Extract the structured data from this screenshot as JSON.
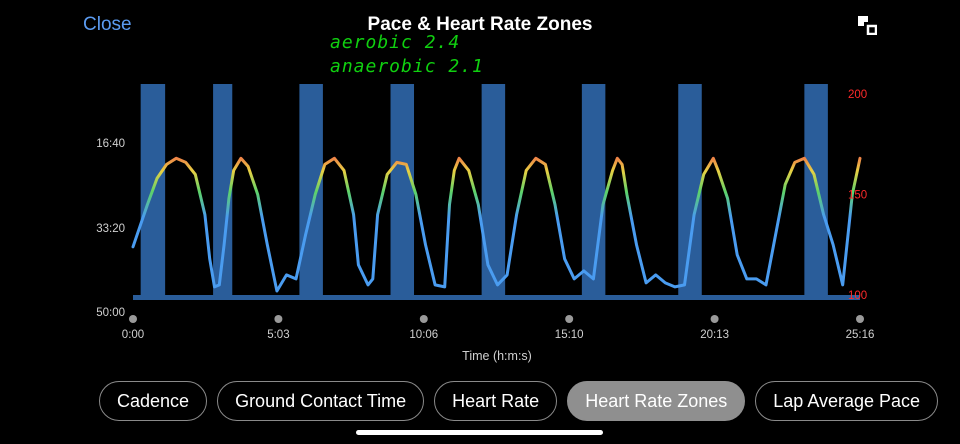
{
  "header": {
    "close_label": "Close",
    "title": "Pace & Heart Rate Zones",
    "expand_icon": "expand-icon"
  },
  "annotation": {
    "line1": "aerobic 2.4",
    "line2": "anaerobic 2.1",
    "color": "#10d010"
  },
  "chart_data": {
    "type": "area",
    "xlabel": "Time (h:m:s)",
    "x_ticks": [
      "0:00",
      "5:03",
      "10:06",
      "15:10",
      "20:13",
      "25:16"
    ],
    "xlim_seconds": [
      0,
      1516
    ],
    "left_axis": {
      "label": "",
      "ticks": [
        "16:40",
        "33:20",
        "50:00"
      ],
      "color": "#ffffff"
    },
    "right_axis": {
      "label": "",
      "ticks": [
        "200",
        "150",
        "100"
      ],
      "ylim": [
        98,
        205
      ],
      "color": "#ff2a2a"
    },
    "series": [
      {
        "type": "area",
        "color": "#2a5d9a",
        "description": "pace intervals (fast blocks)",
        "blocks": [
          [
            16,
            67
          ],
          [
            167,
            207
          ],
          [
            347,
            396
          ],
          [
            537,
            586
          ],
          [
            727,
            776
          ],
          [
            936,
            985
          ],
          [
            1137,
            1186
          ],
          [
            1400,
            1449
          ]
        ]
      },
      {
        "type": "line",
        "description": "heart rate colored by zone",
        "colors": [
          "#4a9cf0",
          "#5dd26a",
          "#e8d043",
          "#f2554a"
        ],
        "x_seconds": [
          0,
          30,
          50,
          70,
          90,
          110,
          130,
          150,
          160,
          170,
          180,
          190,
          200,
          210,
          225,
          240,
          260,
          280,
          300,
          320,
          340,
          360,
          380,
          400,
          420,
          440,
          460,
          470,
          490,
          500,
          510,
          530,
          550,
          570,
          590,
          610,
          630,
          650,
          660,
          670,
          680,
          700,
          720,
          740,
          760,
          780,
          800,
          820,
          840,
          860,
          880,
          900,
          920,
          940,
          960,
          980,
          1000,
          1010,
          1020,
          1030,
          1050,
          1070,
          1090,
          1110,
          1130,
          1150,
          1170,
          1190,
          1210,
          1220,
          1240,
          1260,
          1280,
          1300,
          1320,
          1340,
          1360,
          1380,
          1400,
          1420,
          1440,
          1460,
          1480,
          1500,
          1516
        ],
        "hr": [
          124,
          145,
          158,
          165,
          168,
          166,
          160,
          140,
          118,
          104,
          105,
          125,
          148,
          162,
          168,
          164,
          150,
          125,
          102,
          110,
          108,
          130,
          150,
          165,
          168,
          162,
          140,
          115,
          105,
          108,
          140,
          160,
          166,
          165,
          150,
          125,
          105,
          104,
          145,
          162,
          168,
          162,
          145,
          115,
          105,
          110,
          140,
          162,
          168,
          165,
          145,
          118,
          108,
          112,
          108,
          145,
          162,
          168,
          165,
          150,
          125,
          106,
          110,
          106,
          104,
          105,
          140,
          160,
          168,
          162,
          148,
          120,
          108,
          108,
          105,
          130,
          155,
          166,
          168,
          160,
          140,
          125,
          105,
          150,
          168
        ]
      }
    ],
    "gridlines": false,
    "legend": "none"
  },
  "tabs": [
    {
      "label": "Cadence",
      "active": false
    },
    {
      "label": "Ground Contact Time",
      "active": false
    },
    {
      "label": "Heart Rate",
      "active": false
    },
    {
      "label": "Heart Rate Zones",
      "active": true
    },
    {
      "label": "Lap Average Pace",
      "active": false
    }
  ]
}
